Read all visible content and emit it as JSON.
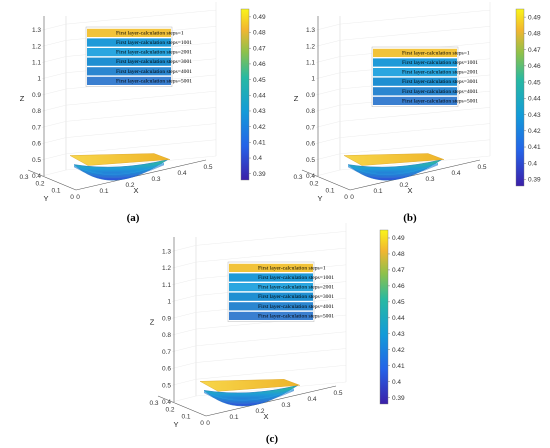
{
  "figure": {
    "panels": [
      {
        "label": "(a)"
      },
      {
        "label": "(b)"
      },
      {
        "label": "(c)"
      }
    ]
  },
  "chart_data": [
    {
      "type": "surface3d",
      "panel": "(a)",
      "zlabel": "Z",
      "xlabel": "X",
      "ylabel": "Y",
      "z_ticks": [
        0.4,
        0.5,
        0.6,
        0.7,
        0.8,
        0.9,
        1,
        1.1,
        1.2,
        1.3
      ],
      "x_ticks": [
        0,
        0.1,
        0.2,
        0.3,
        0.4,
        0.5
      ],
      "y_ticks": [
        0,
        0.1,
        0.2,
        0.3
      ],
      "zlim": [
        0.4,
        1.35
      ],
      "legend_position": "top-center",
      "series": [
        {
          "name": "First layer-calculation steps=1",
          "color": "#f2c33a"
        },
        {
          "name": "First layer-calculation steps=1001",
          "color": "#1f9ad8"
        },
        {
          "name": "First layer-calculation steps=2001",
          "color": "#2aa6e0"
        },
        {
          "name": "First layer-calculation steps=3001",
          "color": "#1e8fd2"
        },
        {
          "name": "First layer-calculation steps=4001",
          "color": "#2b86d0"
        },
        {
          "name": "First layer-calculation steps=5001",
          "color": "#3a7fd0"
        }
      ],
      "colorbar": {
        "ticks": [
          0.39,
          0.4,
          0.41,
          0.42,
          0.43,
          0.44,
          0.45,
          0.46,
          0.47,
          0.48,
          0.49
        ],
        "range": [
          0.386,
          0.495
        ]
      }
    },
    {
      "type": "surface3d",
      "panel": "(b)",
      "zlabel": "Z",
      "xlabel": "X",
      "ylabel": "Y",
      "z_ticks": [
        0.4,
        0.5,
        0.6,
        0.7,
        0.8,
        0.9,
        1,
        1.1,
        1.2,
        1.3
      ],
      "x_ticks": [
        0,
        0.1,
        0.2,
        0.3,
        0.4,
        0.5
      ],
      "y_ticks": [
        0,
        0.1,
        0.2,
        0.3
      ],
      "zlim": [
        0.4,
        1.35
      ],
      "legend_position": "center-right",
      "series": [
        {
          "name": "First layer-calculation steps=1",
          "color": "#f2c33a"
        },
        {
          "name": "First layer-calculation steps=1001",
          "color": "#1f9ad8"
        },
        {
          "name": "First layer-calculation steps=2001",
          "color": "#2aa6e0"
        },
        {
          "name": "First layer-calculation steps=3001",
          "color": "#1e8fd2"
        },
        {
          "name": "First layer-calculation steps=4001",
          "color": "#2b86d0"
        },
        {
          "name": "First layer-calculation steps=5001",
          "color": "#3a7fd0"
        }
      ],
      "colorbar": {
        "ticks": [
          0.39,
          0.4,
          0.41,
          0.42,
          0.43,
          0.44,
          0.45,
          0.46,
          0.47,
          0.48,
          0.49
        ],
        "range": [
          0.386,
          0.495
        ]
      }
    },
    {
      "type": "surface3d",
      "panel": "(c)",
      "zlabel": "Z",
      "xlabel": "X",
      "ylabel": "Y",
      "z_ticks": [
        0.4,
        0.5,
        0.6,
        0.7,
        0.8,
        0.9,
        1,
        1.1,
        1.2,
        1.3
      ],
      "x_ticks": [
        0,
        0.1,
        0.2,
        0.3,
        0.4,
        0.5
      ],
      "y_ticks": [
        0,
        0.1,
        0.2,
        0.3
      ],
      "zlim": [
        0.4,
        1.35
      ],
      "legend_position": "top-center",
      "series": [
        {
          "name": "First layer-calculation steps=1",
          "color": "#f2c33a"
        },
        {
          "name": "First layer-calculation steps=1001",
          "color": "#1f9ad8"
        },
        {
          "name": "First layer-calculation steps=2001",
          "color": "#2aa6e0"
        },
        {
          "name": "First layer-calculation steps=3001",
          "color": "#1e8fd2"
        },
        {
          "name": "First layer-calculation steps=4001",
          "color": "#2b86d0"
        },
        {
          "name": "First layer-calculation steps=5001",
          "color": "#3a7fd0"
        }
      ],
      "colorbar": {
        "ticks": [
          0.39,
          0.4,
          0.41,
          0.42,
          0.43,
          0.44,
          0.45,
          0.46,
          0.47,
          0.48,
          0.49
        ],
        "range": [
          0.386,
          0.495
        ]
      }
    }
  ]
}
